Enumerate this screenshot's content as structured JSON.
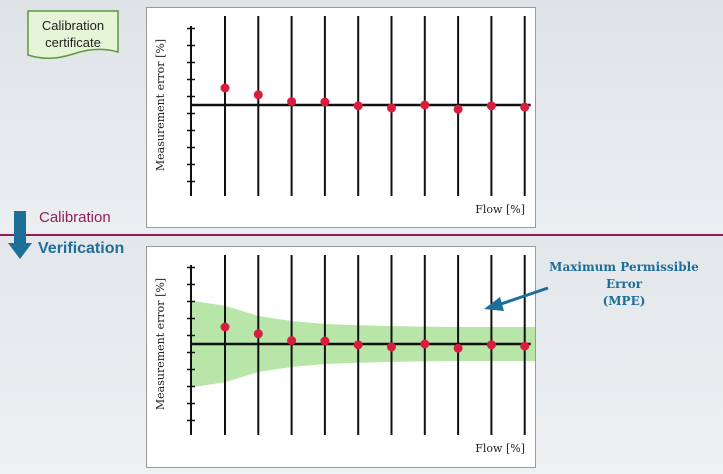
{
  "certificate": {
    "line1": "Calibration",
    "line2": "certificate"
  },
  "stages": {
    "calibration": "Calibration",
    "verification": "Verification"
  },
  "mpe": {
    "line1": "Maximum Permissible Error",
    "line2": "(MPE)"
  },
  "colors": {
    "marker": "#d81e3c",
    "mpe_band": "#b8e6a8",
    "accent_blue": "#1d6e99",
    "accent_purple": "#8f1e5a",
    "certificate_fill": "#e6f4d8",
    "certificate_border": "#5a9a3a"
  },
  "chart_data": [
    {
      "type": "scatter",
      "xlabel": "Flow [%]",
      "ylabel": "Measurement error [%]",
      "x": [
        1,
        2,
        3,
        4,
        5,
        6,
        7,
        8,
        9,
        10
      ],
      "values": [
        2.0,
        1.2,
        0.4,
        0.35,
        -0.1,
        -0.35,
        0.0,
        -0.5,
        -0.1,
        -0.25
      ],
      "ylim": [
        -4,
        4
      ],
      "grid": "vertical lines at each point"
    },
    {
      "type": "scatter",
      "xlabel": "Flow [%]",
      "ylabel": "Measurement error [%]",
      "x": [
        1,
        2,
        3,
        4,
        5,
        6,
        7,
        8,
        9,
        10
      ],
      "values": [
        2.0,
        1.2,
        0.4,
        0.35,
        -0.1,
        -0.35,
        0.0,
        -0.5,
        -0.1,
        -0.25
      ],
      "ylim": [
        -4,
        4
      ],
      "mpe_band": {
        "upper": [
          4.5,
          3.3,
          2.7,
          2.35,
          2.2,
          2.1,
          2.05,
          2.0,
          2.0,
          2.0
        ],
        "lower": [
          -4.5,
          -3.3,
          -2.7,
          -2.35,
          -2.2,
          -2.1,
          -2.05,
          -2.0,
          -2.0,
          -2.0
        ]
      },
      "grid": "vertical lines at each point"
    }
  ]
}
